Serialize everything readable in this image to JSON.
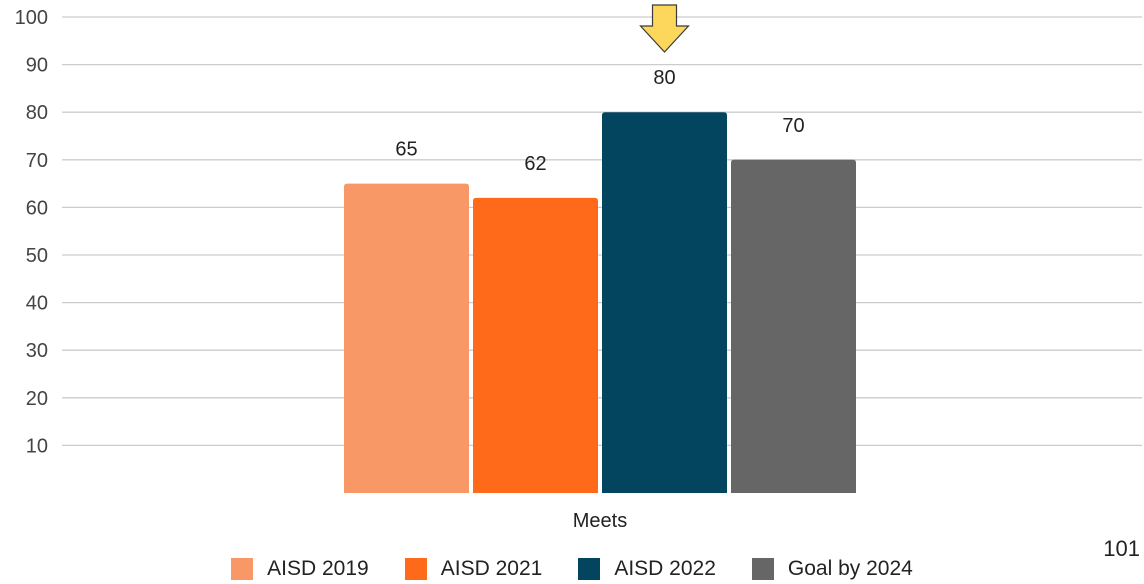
{
  "chart_data": {
    "type": "bar",
    "categories": [
      "Meets"
    ],
    "series": [
      {
        "name": "AISD 2019",
        "values": [
          65
        ],
        "color": "#f79866"
      },
      {
        "name": "AISD 2021",
        "values": [
          62
        ],
        "color": "#ff6a1a"
      },
      {
        "name": "AISD 2022",
        "values": [
          80
        ],
        "color": "#03445e"
      },
      {
        "name": "Goal by 2024",
        "values": [
          70
        ],
        "color": "#666666"
      }
    ],
    "data_labels": [
      "65",
      "62",
      "80",
      "70"
    ],
    "yticks": [
      "10",
      "20",
      "30",
      "40",
      "50",
      "60",
      "70",
      "80",
      "90",
      "100"
    ],
    "ylim": [
      0,
      100
    ],
    "grid": true,
    "legend_position": "bottom",
    "highlight": {
      "series": "AISD 2022",
      "marker": "arrow-down-icon",
      "color": "#fdd75c"
    }
  },
  "page_number": "101"
}
